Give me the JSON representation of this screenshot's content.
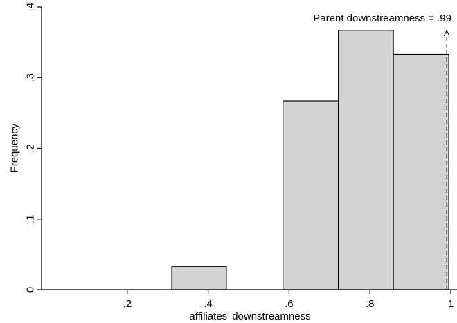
{
  "chart_data": {
    "type": "bar",
    "subtype": "histogram",
    "xlabel": "affiliates' downstreamness",
    "ylabel": "Frequency",
    "xlim": [
      0.0,
      1.0
    ],
    "ylim": [
      0,
      0.4
    ],
    "x_ticks": [
      {
        "value": 0.2,
        "label": ".2"
      },
      {
        "value": 0.4,
        "label": ".4"
      },
      {
        "value": 0.6,
        "label": ".6"
      },
      {
        "value": 0.8,
        "label": ".8"
      },
      {
        "value": 1.0,
        "label": "1"
      }
    ],
    "y_ticks": [
      {
        "value": 0.0,
        "label": "0"
      },
      {
        "value": 0.1,
        "label": ".1"
      },
      {
        "value": 0.2,
        "label": ".2"
      },
      {
        "value": 0.3,
        "label": ".3"
      },
      {
        "value": 0.4,
        "label": ".4"
      }
    ],
    "bins": [
      {
        "x0": 0.31,
        "x1": 0.445,
        "value": 0.033
      },
      {
        "x0": 0.585,
        "x1": 0.722,
        "value": 0.267
      },
      {
        "x0": 0.722,
        "x1": 0.858,
        "value": 0.367
      },
      {
        "x0": 0.858,
        "x1": 0.995,
        "value": 0.333
      }
    ],
    "reference_line": {
      "x": 0.99,
      "style": "dashed",
      "label": "Parent downstreamness = .99",
      "arrow": "up"
    },
    "bar_color": "#d3d3d3",
    "bar_edge_color": "#000000",
    "grid": false,
    "legend": "none"
  }
}
